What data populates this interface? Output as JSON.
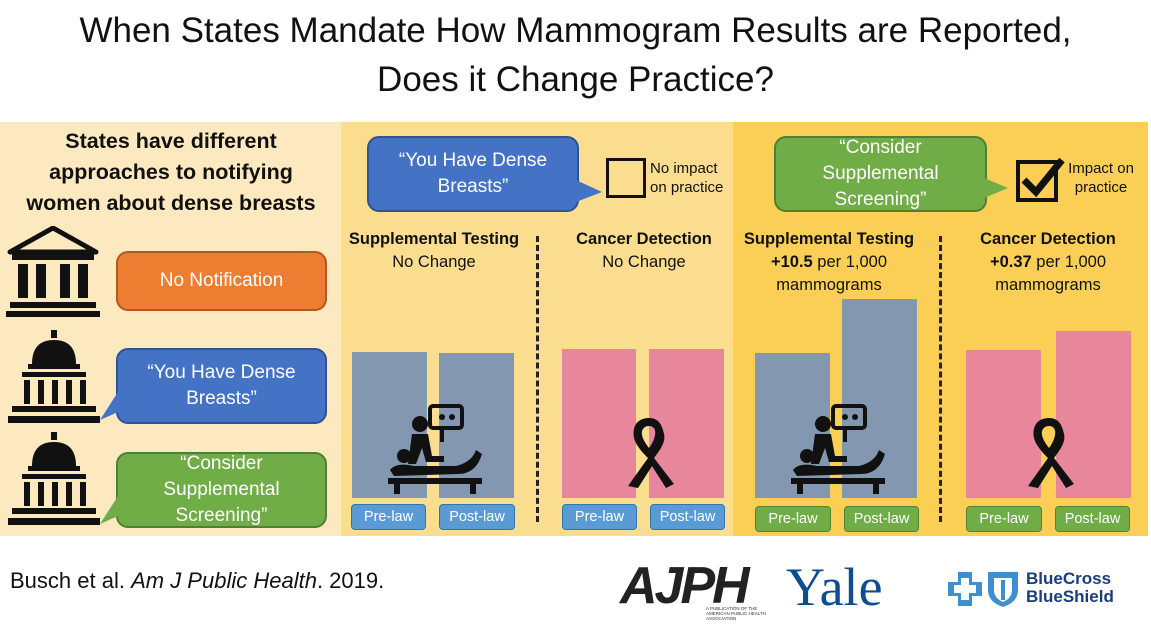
{
  "title": {
    "line1": "When States Mandate How Mammogram Results are Reported,",
    "line2": "Does it Change Practice?"
  },
  "left_panel": {
    "heading_line1": "States have different",
    "heading_line2": "approaches to notifying",
    "heading_line3": "women about dense breasts",
    "rows": [
      {
        "icon": "bank-building-icon",
        "label": "No Notification",
        "color": "#ed7d31"
      },
      {
        "icon": "capitol-building-icon",
        "label_line1": "“You Have Dense",
        "label_line2": "Breasts”",
        "color": "#4472c4"
      },
      {
        "icon": "capitol-building-icon",
        "label_line1": "“Consider",
        "label_line2": "Supplemental",
        "label_line3": "Screening”",
        "color": "#70ad47"
      }
    ]
  },
  "middle_panel": {
    "bubble_line1": "“You Have Dense",
    "bubble_line2": "Breasts”",
    "checkbox_checked": false,
    "checkbox_label_line1": "No impact",
    "checkbox_label_line2": "on practice",
    "supplemental": {
      "title": "Supplemental Testing",
      "result": "No Change",
      "pre_label": "Pre-law",
      "post_label": "Post-law",
      "icon": "patient-scan-icon"
    },
    "detection": {
      "title": "Cancer Detection",
      "result": "No Change",
      "pre_label": "Pre-law",
      "post_label": "Post-law",
      "icon": "awareness-ribbon-icon"
    }
  },
  "right_panel": {
    "bubble_line1": "“Consider",
    "bubble_line2": "Supplemental",
    "bubble_line3": "Screening”",
    "checkbox_checked": true,
    "checkbox_label_line1": "Impact on",
    "checkbox_label_line2": "practice",
    "supplemental": {
      "title": "Supplemental Testing",
      "result_bold": "+10.5",
      "result_rest": " per 1,000",
      "result_line2": "mammograms",
      "pre_label": "Pre-law",
      "post_label": "Post-law",
      "icon": "patient-scan-icon"
    },
    "detection": {
      "title": "Cancer Detection",
      "result_bold": "+0.37",
      "result_rest": " per 1,000",
      "result_line2": "mammograms",
      "pre_label": "Pre-law",
      "post_label": "Post-law",
      "icon": "awareness-ribbon-icon"
    }
  },
  "colors": {
    "gray_bar": "#8497b0",
    "pink_bar": "#e8879c"
  },
  "citation": {
    "authors": "Busch et al. ",
    "journal": "Am J Public Health",
    "year": ". 2019."
  },
  "logos": {
    "ajph": "AJPH",
    "ajph_sub": "A PUBLICATION OF THE AMERICAN PUBLIC HEALTH ASSOCIATION",
    "yale": "Yale",
    "bcbs_line1": "BlueCross",
    "bcbs_line2": "BlueShield"
  }
}
